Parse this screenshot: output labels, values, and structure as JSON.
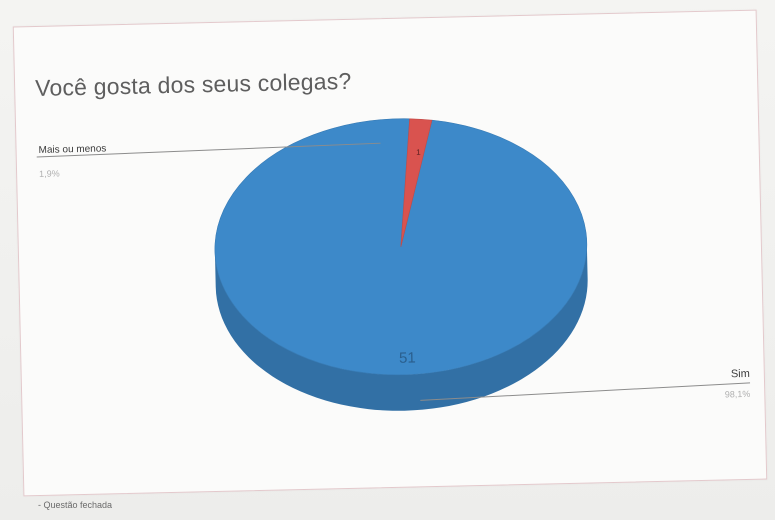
{
  "chart_data": {
    "type": "pie",
    "title": "Você gosta dos seus colegas?",
    "categories": [
      "Sim",
      "Mais ou menos"
    ],
    "values": [
      51,
      1
    ],
    "percent_labels": [
      "98,1%",
      "1,9%"
    ],
    "slice_value_labels": [
      "51",
      "1"
    ],
    "colors": [
      "#3d89c9",
      "#d9534f"
    ],
    "legend": "none"
  },
  "footer": {
    "caption": "- Questão fechada"
  }
}
